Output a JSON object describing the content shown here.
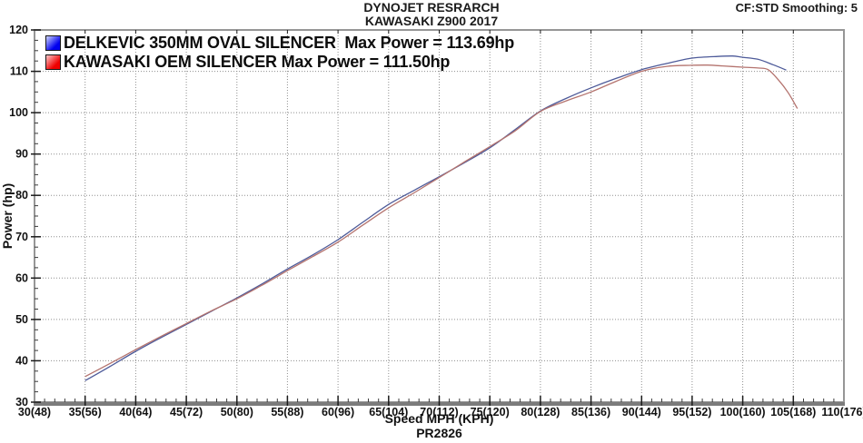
{
  "header": {
    "title_line1": "DYNOJET RESRARCH",
    "title_line2": "KAWASAKI Z900 2017",
    "smoothing_label": "CF:STD Smoothing: 5"
  },
  "footer": {
    "xlabel": "Speed MPH (KPH)",
    "run_id": "PR2826"
  },
  "colors": {
    "grid": "#8f8f8f",
    "border": "#969696",
    "axis_bottom": "#7b7b7b",
    "tick": "#1a1a1a",
    "text": "#111111"
  },
  "chart_data": {
    "type": "line",
    "title": "DYNOJET RESRARCH — KAWASAKI Z900 2017",
    "xlabel": "Speed MPH (KPH)",
    "ylabel": "Power (hp)",
    "xlim": [
      30,
      110
    ],
    "ylim": [
      30,
      120
    ],
    "grid": true,
    "legend_position": "top-left-inside",
    "x_ticks": [
      {
        "value": 30,
        "label": "30(48)"
      },
      {
        "value": 35,
        "label": "35(56)"
      },
      {
        "value": 40,
        "label": "40(64)"
      },
      {
        "value": 45,
        "label": "45(72)"
      },
      {
        "value": 50,
        "label": "50(80)"
      },
      {
        "value": 55,
        "label": "55(88)"
      },
      {
        "value": 60,
        "label": "60(96)"
      },
      {
        "value": 65,
        "label": "65(104)"
      },
      {
        "value": 70,
        "label": "70(112)"
      },
      {
        "value": 75,
        "label": "75(120)"
      },
      {
        "value": 80,
        "label": "80(128)"
      },
      {
        "value": 85,
        "label": "85(136)"
      },
      {
        "value": 90,
        "label": "90(144)"
      },
      {
        "value": 95,
        "label": "95(152)"
      },
      {
        "value": 100,
        "label": "100(160)"
      },
      {
        "value": 105,
        "label": "105(168)"
      },
      {
        "value": 110,
        "label": "110(176)"
      }
    ],
    "y_ticks": [
      30,
      40,
      50,
      60,
      70,
      80,
      90,
      100,
      110,
      120
    ],
    "x_minor_step": 1,
    "y_minor_step": 2.5,
    "series": [
      {
        "name": "DELKEVIC 350MM OVAL SILENCER",
        "legend_label": "DELKEVIC 350MM OVAL SILENCER  Max Power = 113.69hp",
        "max_power_hp": 113.69,
        "line_color": "#4d5a99",
        "swatch_color": "#0000ee",
        "x": [
          35,
          37.5,
          40,
          42.5,
          45,
          47.5,
          50,
          52.5,
          55,
          57.5,
          60,
          62.5,
          65,
          67.5,
          70,
          72.5,
          75,
          77.5,
          80,
          82.5,
          85,
          87.5,
          90,
          92.5,
          95,
          97.5,
          99,
          100,
          101.5,
          103,
          104.3
        ],
        "y": [
          35.2,
          38.7,
          42.3,
          45.6,
          48.8,
          52.0,
          55.2,
          58.6,
          62.2,
          65.6,
          69.3,
          73.6,
          77.8,
          81.2,
          84.5,
          87.9,
          91.5,
          95.9,
          100.4,
          103.4,
          106.0,
          108.3,
          110.4,
          111.9,
          113.2,
          113.6,
          113.69,
          113.4,
          112.9,
          111.6,
          110.3
        ]
      },
      {
        "name": "KAWASAKI OEM SILENCER",
        "legend_label": "KAWASAKI OEM SILENCER Max Power = 111.50hp",
        "max_power_hp": 111.5,
        "line_color": "#b4736e",
        "swatch_color": "#ee0000",
        "x": [
          35,
          37.5,
          40,
          42.5,
          45,
          47.5,
          50,
          52.5,
          55,
          57.5,
          60,
          62.5,
          65,
          67.5,
          70,
          72.5,
          75,
          77.5,
          80,
          82.5,
          85,
          87.5,
          90,
          92.5,
          95,
          96.5,
          98,
          100,
          101.5,
          102.5,
          103.5,
          104.5,
          105.4
        ],
        "y": [
          36.2,
          39.4,
          42.7,
          45.9,
          49.0,
          52.1,
          55.0,
          58.3,
          61.8,
          65.2,
          68.7,
          72.9,
          77.0,
          80.6,
          84.3,
          88.1,
          91.8,
          95.6,
          100.3,
          102.8,
          105.0,
          107.6,
          110.0,
          111.2,
          111.45,
          111.5,
          111.3,
          111.0,
          110.8,
          110.4,
          108.0,
          104.8,
          101.0
        ]
      }
    ]
  }
}
